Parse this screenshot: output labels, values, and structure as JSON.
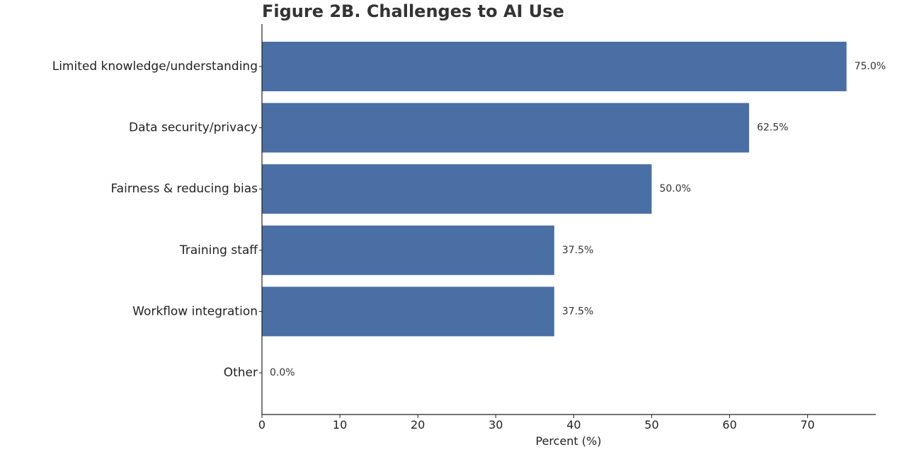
{
  "chart_data": {
    "type": "bar",
    "orientation": "horizontal",
    "title": "Figure 2B. Challenges to AI Use",
    "xlabel": "Percent (%)",
    "ylabel": "",
    "xlim": [
      0,
      78.75
    ],
    "xticks": [
      0,
      10,
      20,
      30,
      40,
      50,
      60,
      70
    ],
    "categories": [
      "Limited knowledge/understanding",
      "Data security/privacy",
      "Fairness & reducing bias",
      "Training staff",
      "Workflow integration",
      "Other"
    ],
    "values": [
      75.0,
      62.5,
      50.0,
      37.5,
      37.5,
      0.0
    ],
    "value_labels": [
      "75.0%",
      "62.5%",
      "50.0%",
      "37.5%",
      "37.5%",
      "0.0%"
    ],
    "bar_color": "#4a6fa5",
    "grid": false,
    "legend": "none"
  }
}
